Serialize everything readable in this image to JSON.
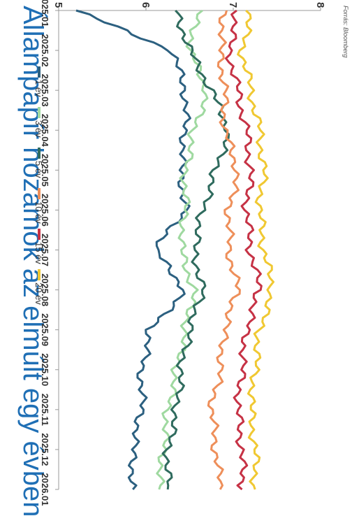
{
  "chart_data": {
    "type": "line",
    "title": "Állampapír hozamok az elmúlt egy évben",
    "source": "Forrás: Bloomberg",
    "orientation": "rotated-90-clockwise",
    "xlabel": "",
    "ylabel": "",
    "x": [
      "2025.01",
      "2025.02",
      "2025.03",
      "2025.04",
      "2025.05",
      "2025.06",
      "2025.07",
      "2025.08",
      "2025.09",
      "2025.10",
      "2025.11",
      "2025.12",
      "2026.01"
    ],
    "x_tick_labels": [
      "2025.01",
      "2025.02",
      "2025.03",
      "2025.04",
      "2025.05",
      "2025.06",
      "2025.07",
      "2025.08",
      "2025.09",
      "2025.10",
      "2025.11",
      "2025.12",
      "2026.01"
    ],
    "y_ticks": [
      "5",
      "6",
      "7",
      "8"
    ],
    "ylim": [
      5,
      8
    ],
    "grid": false,
    "legend_position": "top",
    "series": [
      {
        "name": "1 év",
        "color": "#2c6080",
        "values": [
          5.2,
          6.3,
          6.45,
          6.45,
          6.4,
          6.45,
          6.1,
          6.45,
          6.05,
          5.95,
          5.95,
          5.85,
          5.85
        ]
      },
      {
        "name": "3 év",
        "color": "#9fd9a0",
        "values": [
          6.6,
          6.5,
          6.7,
          6.55,
          6.45,
          6.45,
          6.4,
          6.55,
          6.45,
          6.35,
          6.25,
          6.2,
          6.15
        ]
      },
      {
        "name": "5 év",
        "color": "#2f6b5e",
        "values": [
          6.35,
          6.5,
          6.75,
          6.95,
          6.8,
          6.65,
          6.55,
          6.65,
          6.5,
          6.4,
          6.35,
          6.25,
          6.25
        ]
      },
      {
        "name": "10 év",
        "color": "#ee8f5a",
        "values": [
          6.9,
          6.85,
          6.9,
          6.9,
          7.05,
          6.95,
          6.95,
          7.05,
          6.9,
          6.85,
          6.75,
          6.8,
          6.85
        ]
      },
      {
        "name": "15 év",
        "color": "#c63245",
        "values": [
          7.05,
          6.95,
          7.05,
          7.15,
          7.2,
          7.15,
          7.2,
          7.3,
          7.15,
          7.1,
          7.05,
          7.1,
          7.1
        ]
      },
      {
        "name": "20 év",
        "color": "#f0c832",
        "values": [
          7.2,
          7.1,
          7.2,
          7.3,
          7.35,
          7.3,
          7.35,
          7.45,
          7.3,
          7.25,
          7.2,
          7.25,
          7.25
        ]
      }
    ]
  }
}
